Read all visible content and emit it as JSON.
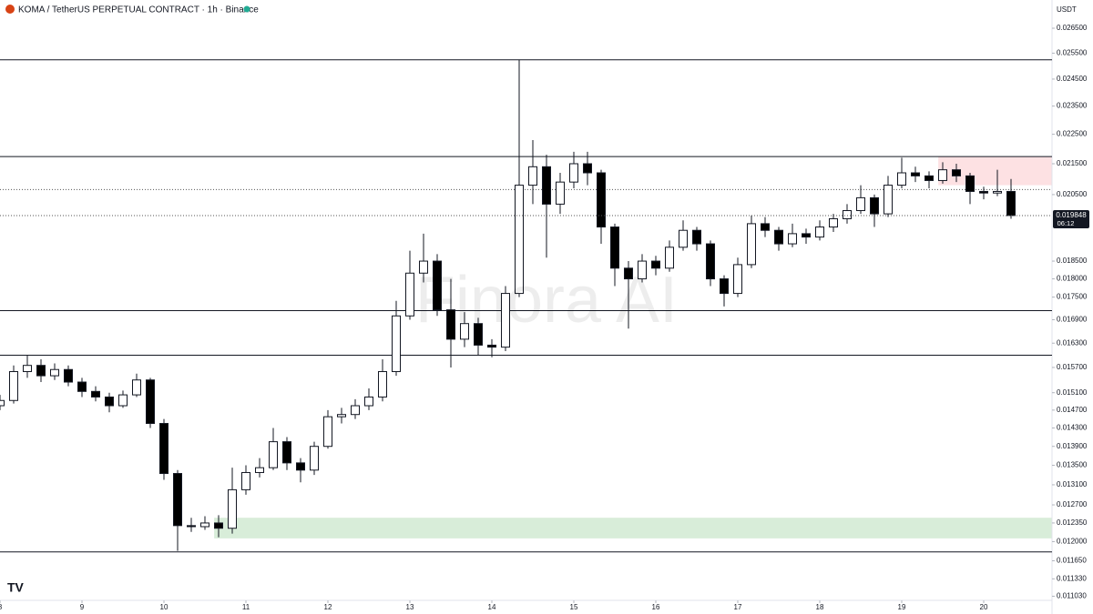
{
  "chart_data": {
    "type": "candlestick",
    "title": "KOMA / TetherUS PERPETUAL CONTRACT · 1h · Binance",
    "currency": "USDT",
    "watermark": "Finora AI",
    "last_price_label": "0.019848",
    "countdown": "06:12",
    "log_scale": true,
    "up_color": "#ffffff",
    "down_color": "#000000",
    "x": [
      0,
      4,
      8,
      12,
      16,
      20,
      24,
      28,
      32,
      36,
      40,
      44,
      48,
      52,
      56,
      60,
      64,
      68,
      72,
      76,
      80,
      84,
      88,
      92,
      96,
      100,
      104,
      108,
      112,
      116,
      120,
      124,
      128,
      132,
      136,
      140,
      144,
      148,
      152,
      156,
      160,
      164,
      168,
      172,
      176,
      180,
      184,
      188,
      192,
      196,
      200,
      204,
      208,
      212,
      216,
      220,
      224,
      228,
      232,
      236,
      240,
      244,
      248,
      252,
      256,
      260,
      264,
      268,
      272,
      276,
      280,
      284,
      288,
      292,
      296
    ],
    "open": [
      0.0148,
      0.01492,
      0.0156,
      0.01575,
      0.0155,
      0.01565,
      0.01535,
      0.01513,
      0.015,
      0.0148,
      0.01505,
      0.0154,
      0.0144,
      0.01333,
      0.0123,
      0.01228,
      0.01235,
      0.01225,
      0.013,
      0.01335,
      0.01345,
      0.014,
      0.01355,
      0.0134,
      0.0139,
      0.01455,
      0.0146,
      0.0148,
      0.015,
      0.0156,
      0.017,
      0.01816,
      0.0185,
      0.01716,
      0.0164,
      0.0168,
      0.01625,
      0.0162,
      0.0176,
      0.0208,
      0.0214,
      0.0202,
      0.0209,
      0.0215,
      0.0212,
      0.0195,
      0.0183,
      0.018,
      0.0185,
      0.0183,
      0.0189,
      0.0194,
      0.019,
      0.018,
      0.0176,
      0.0184,
      0.0196,
      0.0194,
      0.019,
      0.0193,
      0.0192,
      0.0195,
      0.01975,
      0.02,
      0.0204,
      0.0199,
      0.0208,
      0.0212,
      0.0211,
      0.02095,
      0.0213,
      0.0211,
      0.0206,
      0.02055,
      0.0206
    ],
    "high": [
      0.01505,
      0.01575,
      0.016,
      0.0159,
      0.0158,
      0.01575,
      0.01545,
      0.01525,
      0.0151,
      0.01515,
      0.01555,
      0.01545,
      0.0145,
      0.0134,
      0.01245,
      0.01248,
      0.0125,
      0.01345,
      0.0135,
      0.01365,
      0.0143,
      0.0141,
      0.01365,
      0.014,
      0.0147,
      0.01475,
      0.01495,
      0.0152,
      0.0159,
      0.0174,
      0.0188,
      0.0193,
      0.0187,
      0.018,
      0.0171,
      0.01695,
      0.0164,
      0.0178,
      0.02524,
      0.0223,
      0.0218,
      0.0212,
      0.0219,
      0.0219,
      0.0213,
      0.0196,
      0.0185,
      0.0187,
      0.01865,
      0.0191,
      0.0197,
      0.0195,
      0.0191,
      0.0181,
      0.0186,
      0.01985,
      0.0198,
      0.0195,
      0.0196,
      0.01945,
      0.0197,
      0.0199,
      0.0202,
      0.0208,
      0.0205,
      0.0211,
      0.0217,
      0.0214,
      0.02125,
      0.02155,
      0.0215,
      0.0212,
      0.02075,
      0.0213,
      0.021
    ],
    "low": [
      0.0147,
      0.01485,
      0.01545,
      0.01535,
      0.0154,
      0.01525,
      0.015,
      0.0149,
      0.01465,
      0.01475,
      0.015,
      0.0143,
      0.0132,
      0.01183,
      0.01218,
      0.01222,
      0.01208,
      0.01215,
      0.0129,
      0.01325,
      0.0134,
      0.0134,
      0.01315,
      0.0133,
      0.01385,
      0.0144,
      0.0145,
      0.0147,
      0.0149,
      0.0155,
      0.0169,
      0.0179,
      0.017,
      0.0157,
      0.0162,
      0.016,
      0.01595,
      0.0161,
      0.0175,
      0.0202,
      0.0186,
      0.0199,
      0.0207,
      0.0208,
      0.019,
      0.0178,
      0.01667,
      0.0179,
      0.0181,
      0.0182,
      0.0188,
      0.0188,
      0.0178,
      0.01725,
      0.0175,
      0.0183,
      0.0192,
      0.0188,
      0.0189,
      0.019,
      0.0191,
      0.01935,
      0.0196,
      0.0199,
      0.0195,
      0.0198,
      0.0207,
      0.0209,
      0.0207,
      0.02085,
      0.0209,
      0.0202,
      0.02035,
      0.02045,
      0.01975
    ],
    "close": [
      0.01492,
      0.0156,
      0.01575,
      0.0155,
      0.01565,
      0.01535,
      0.01513,
      0.015,
      0.0148,
      0.01505,
      0.0154,
      0.0144,
      0.01333,
      0.0123,
      0.01228,
      0.01235,
      0.01225,
      0.013,
      0.01335,
      0.01345,
      0.014,
      0.01355,
      0.0134,
      0.0139,
      0.01455,
      0.0146,
      0.0148,
      0.015,
      0.0156,
      0.017,
      0.01816,
      0.0185,
      0.01716,
      0.0164,
      0.0168,
      0.01625,
      0.0162,
      0.0176,
      0.0208,
      0.0214,
      0.0202,
      0.0209,
      0.0215,
      0.0212,
      0.0195,
      0.0183,
      0.018,
      0.0185,
      0.0183,
      0.0189,
      0.0194,
      0.019,
      0.018,
      0.0176,
      0.0184,
      0.0196,
      0.0194,
      0.019,
      0.0193,
      0.0192,
      0.0195,
      0.01975,
      0.02,
      0.0204,
      0.0199,
      0.0208,
      0.0212,
      0.0211,
      0.02095,
      0.0213,
      0.0211,
      0.0206,
      0.02055,
      0.0206,
      0.019848
    ],
    "levels": [
      0.02524,
      0.02174,
      0.01714,
      0.016,
      0.01181
    ],
    "dotted_levels": [
      0.02066
    ],
    "zones": [
      {
        "start": 62.7,
        "low": 0.01206,
        "high": 0.01245,
        "color": "rgba(76,175,80,0.22)"
      },
      {
        "start": 274.7,
        "low": 0.0208,
        "high": 0.02174,
        "color": "rgba(242,54,69,0.15)"
      }
    ],
    "xlim": [
      0,
      308
    ],
    "ylim": [
      0.01096,
      0.02768
    ],
    "xticks": [
      {
        "value": 0,
        "label": "8"
      },
      {
        "value": 24,
        "label": "9"
      },
      {
        "value": 48,
        "label": "10"
      },
      {
        "value": 72,
        "label": "11"
      },
      {
        "value": 96,
        "label": "12"
      },
      {
        "value": 120,
        "label": "13"
      },
      {
        "value": 144,
        "label": "14"
      },
      {
        "value": 168,
        "label": "15"
      },
      {
        "value": 192,
        "label": "16"
      },
      {
        "value": 216,
        "label": "17"
      },
      {
        "value": 240,
        "label": "18"
      },
      {
        "value": 264,
        "label": "19"
      },
      {
        "value": 288,
        "label": "20"
      }
    ],
    "yticks": [
      {
        "value": 0.0265,
        "label": "0.026500"
      },
      {
        "value": 0.0255,
        "label": "0.025500"
      },
      {
        "value": 0.0245,
        "label": "0.024500"
      },
      {
        "value": 0.0235,
        "label": "0.023500"
      },
      {
        "value": 0.0225,
        "label": "0.022500"
      },
      {
        "value": 0.0215,
        "label": "0.021500"
      },
      {
        "value": 0.0205,
        "label": "0.020500"
      },
      {
        "value": 0.0185,
        "label": "0.018500"
      },
      {
        "value": 0.018,
        "label": "0.018000"
      },
      {
        "value": 0.0175,
        "label": "0.017500"
      },
      {
        "value": 0.0169,
        "label": "0.016900"
      },
      {
        "value": 0.0163,
        "label": "0.016300"
      },
      {
        "value": 0.0157,
        "label": "0.015700"
      },
      {
        "value": 0.0151,
        "label": "0.015100"
      },
      {
        "value": 0.0147,
        "label": "0.014700"
      },
      {
        "value": 0.0143,
        "label": "0.014300"
      },
      {
        "value": 0.0139,
        "label": "0.013900"
      },
      {
        "value": 0.0135,
        "label": "0.013500"
      },
      {
        "value": 0.0131,
        "label": "0.013100"
      },
      {
        "value": 0.0127,
        "label": "0.012700"
      },
      {
        "value": 0.01235,
        "label": "0.012350"
      },
      {
        "value": 0.012,
        "label": "0.012000"
      },
      {
        "value": 0.01165,
        "label": "0.011650"
      },
      {
        "value": 0.01133,
        "label": "0.011330"
      },
      {
        "value": 0.01103,
        "label": "0.011030"
      }
    ]
  }
}
